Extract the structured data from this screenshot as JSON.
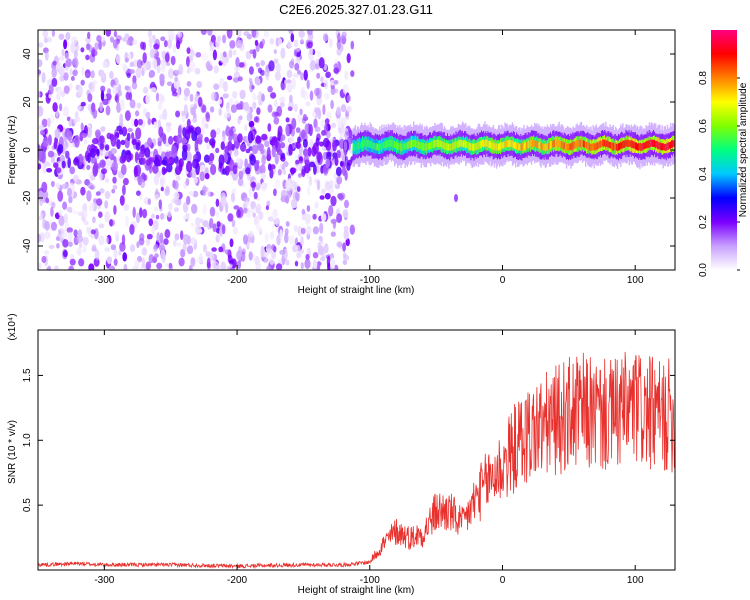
{
  "figure": {
    "title": "C2E6.2025.327.01.23.G11"
  },
  "chart_data": [
    {
      "type": "heatmap",
      "xlabel": "Height of straight line (km)",
      "ylabel": "Frequency (Hz)",
      "xlim": [
        -350,
        130
      ],
      "ylim": [
        -50,
        50
      ],
      "xticks": [
        -300,
        -200,
        -100,
        0,
        100
      ],
      "yticks": [
        -40,
        -20,
        0,
        20,
        40
      ],
      "colorbar": {
        "label": "Normalized spectral amplitude",
        "range": [
          0,
          1
        ],
        "ticks": [
          0.0,
          0.2,
          0.4,
          0.6,
          0.8
        ],
        "colors": [
          "#ffffff",
          "#c8a0ff",
          "#7b00ff",
          "#0000ff",
          "#00c8ff",
          "#00ff80",
          "#80ff00",
          "#ffff00",
          "#ff8000",
          "#ff0000",
          "#ff0080"
        ]
      },
      "regions": [
        {
          "x_range": [
            -350,
            -113
          ],
          "content": "scattered noise",
          "max_amplitude": 0.2
        },
        {
          "x_range": [
            -113,
            130
          ],
          "content": "narrow band centered near 2 Hz",
          "band_halfwidth_hz": 5,
          "peak_amplitude": 0.95
        }
      ]
    },
    {
      "type": "line",
      "xlabel": "Height of straight line (km)",
      "ylabel": "SNR (10 * v/v)",
      "y_multiplier": "(x10⁴)",
      "xlim": [
        -350,
        130
      ],
      "ylim": [
        0,
        1.85
      ],
      "xticks": [
        -300,
        -200,
        -100,
        0,
        100
      ],
      "yticks": [
        0.5,
        1.0,
        1.5
      ],
      "series": [
        {
          "color": "#e8302c",
          "x": [
            -350,
            -320,
            -300,
            -250,
            -200,
            -150,
            -120,
            -100,
            -90,
            -80,
            -70,
            -60,
            -50,
            -40,
            -30,
            -20,
            -10,
            0,
            10,
            20,
            30,
            40,
            50,
            60,
            70,
            80,
            90,
            100,
            110,
            120,
            130
          ],
          "y": [
            0.04,
            0.05,
            0.04,
            0.04,
            0.03,
            0.04,
            0.04,
            0.06,
            0.2,
            0.3,
            0.25,
            0.28,
            0.45,
            0.45,
            0.35,
            0.55,
            0.7,
            0.8,
            0.95,
            1.05,
            1.1,
            1.15,
            1.2,
            1.22,
            1.2,
            1.18,
            1.22,
            1.25,
            1.2,
            1.18,
            1.2
          ]
        }
      ]
    }
  ]
}
